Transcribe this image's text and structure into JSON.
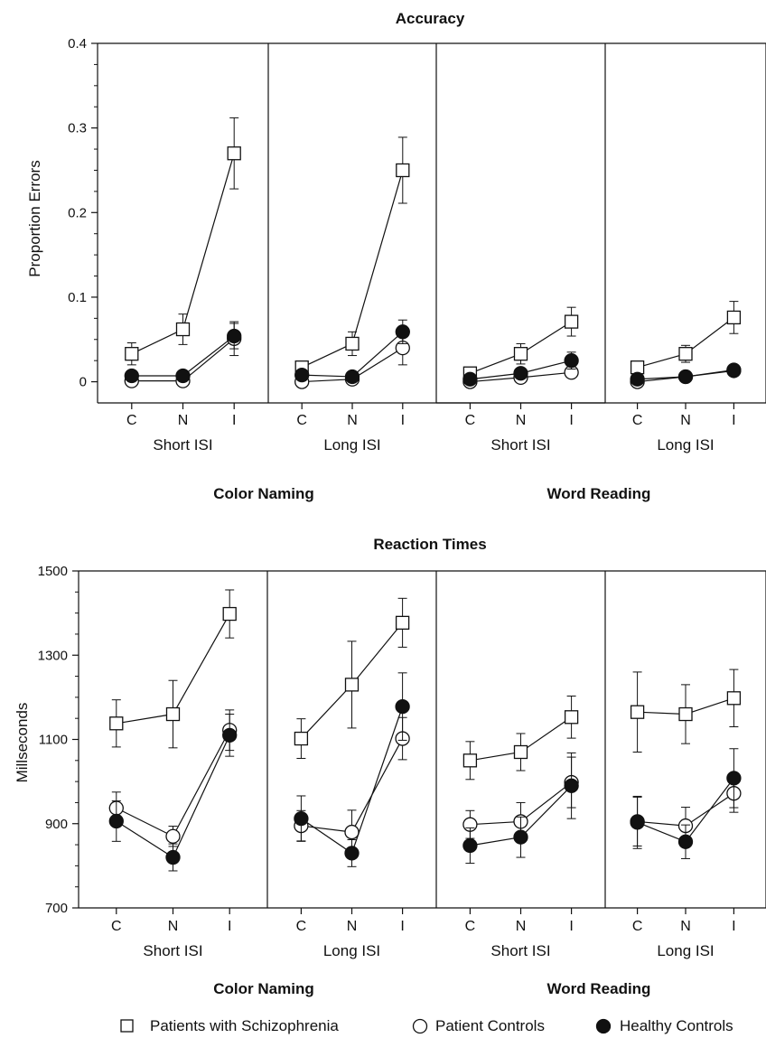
{
  "legend": [
    {
      "label": "Patients with Schizophrenia",
      "marker": "open-square"
    },
    {
      "label": "Patient Controls",
      "marker": "open-circle"
    },
    {
      "label": "Healthy Controls",
      "marker": "filled-circle"
    }
  ],
  "colors": {
    "ink": "#111111",
    "background": "#ffffff"
  },
  "chart_data": [
    {
      "type": "line",
      "title": "Accuracy",
      "ylabel": "Proportion Errors",
      "ylim": [
        -0.025,
        0.4
      ],
      "yticks": [
        0,
        0.1,
        0.2,
        0.3,
        0.4
      ],
      "ytick_labels": [
        "0",
        "0.1",
        "0.2",
        "0.3",
        "0.4"
      ],
      "categories": [
        "C",
        "N",
        "I"
      ],
      "groups": [
        "Color Naming",
        "Word Reading"
      ],
      "subpanels": [
        {
          "group": "Color Naming",
          "isi": "Short ISI",
          "series": [
            {
              "name": "Patients with Schizophrenia",
              "values": [
                0.033,
                0.062,
                0.27
              ],
              "err": [
                0.013,
                0.018,
                0.042
              ]
            },
            {
              "name": "Patient Controls",
              "values": [
                0.001,
                0.001,
                0.051
              ],
              "err": [
                0,
                0,
                0.02
              ]
            },
            {
              "name": "Healthy Controls",
              "values": [
                0.007,
                0.007,
                0.054
              ],
              "err": [
                0.004,
                0.006,
                0.015
              ]
            }
          ]
        },
        {
          "group": "Color Naming",
          "isi": "Long ISI",
          "series": [
            {
              "name": "Patients with Schizophrenia",
              "values": [
                0.017,
                0.045,
                0.25
              ],
              "err": [
                0.006,
                0.014,
                0.039
              ]
            },
            {
              "name": "Patient Controls",
              "values": [
                0.0,
                0.003,
                0.04
              ],
              "err": [
                0,
                0,
                0.02
              ]
            },
            {
              "name": "Healthy Controls",
              "values": [
                0.008,
                0.006,
                0.059
              ],
              "err": [
                0.003,
                0.003,
                0.014
              ]
            }
          ]
        },
        {
          "group": "Word Reading",
          "isi": "Short ISI",
          "series": [
            {
              "name": "Patients with Schizophrenia",
              "values": [
                0.01,
                0.033,
                0.071
              ],
              "err": [
                0.005,
                0.012,
                0.017
              ]
            },
            {
              "name": "Patient Controls",
              "values": [
                0.0,
                0.005,
                0.011
              ],
              "err": [
                0,
                0,
                0
              ]
            },
            {
              "name": "Healthy Controls",
              "values": [
                0.003,
                0.01,
                0.025
              ],
              "err": [
                0.002,
                0.005,
                0.01
              ]
            }
          ]
        },
        {
          "group": "Word Reading",
          "isi": "Long ISI",
          "series": [
            {
              "name": "Patients with Schizophrenia",
              "values": [
                0.017,
                0.033,
                0.076
              ],
              "err": [
                0.004,
                0.01,
                0.019
              ]
            },
            {
              "name": "Patient Controls",
              "values": [
                0.0,
                0.006,
                0.013
              ],
              "err": [
                0,
                0,
                0
              ]
            },
            {
              "name": "Healthy Controls",
              "values": [
                0.003,
                0.006,
                0.014
              ],
              "err": [
                0.002,
                0.002,
                0.004
              ]
            }
          ]
        }
      ]
    },
    {
      "type": "line",
      "title": "Reaction Times",
      "ylabel": "Millseconds",
      "ylim": [
        700,
        1500
      ],
      "yticks": [
        700,
        900,
        1100,
        1300,
        1500
      ],
      "ytick_labels": [
        "700",
        "900",
        "1100",
        "1300",
        "1500"
      ],
      "categories": [
        "C",
        "N",
        "I"
      ],
      "groups": [
        "Color Naming",
        "Word Reading"
      ],
      "subpanels": [
        {
          "group": "Color Naming",
          "isi": "Short ISI",
          "series": [
            {
              "name": "Patients with Schizophrenia",
              "values": [
                1138,
                1160,
                1398
              ],
              "err": [
                56,
                80,
                57
              ]
            },
            {
              "name": "Patient Controls",
              "values": [
                937,
                870,
                1122
              ],
              "err": [
                38,
                24,
                48
              ]
            },
            {
              "name": "Healthy Controls",
              "values": [
                906,
                820,
                1110
              ],
              "err": [
                48,
                32,
                50
              ]
            }
          ]
        },
        {
          "group": "Color Naming",
          "isi": "Long ISI",
          "series": [
            {
              "name": "Patients with Schizophrenia",
              "values": [
                1102,
                1230,
                1377
              ],
              "err": [
                47,
                103,
                58
              ]
            },
            {
              "name": "Patient Controls",
              "values": [
                895,
                880,
                1102
              ],
              "err": [
                36,
                52,
                50
              ]
            },
            {
              "name": "Healthy Controls",
              "values": [
                912,
                830,
                1178
              ],
              "err": [
                54,
                32,
                80
              ]
            }
          ]
        },
        {
          "group": "Word Reading",
          "isi": "Short ISI",
          "series": [
            {
              "name": "Patients with Schizophrenia",
              "values": [
                1050,
                1070,
                1153
              ],
              "err": [
                45,
                44,
                50
              ]
            },
            {
              "name": "Patient Controls",
              "values": [
                898,
                905,
                998
              ],
              "err": [
                33,
                45,
                60
              ]
            },
            {
              "name": "Healthy Controls",
              "values": [
                848,
                868,
                990
              ],
              "err": [
                42,
                48,
                78
              ]
            }
          ]
        },
        {
          "group": "Word Reading",
          "isi": "Long ISI",
          "series": [
            {
              "name": "Patients with Schizophrenia",
              "values": [
                1165,
                1160,
                1198
              ],
              "err": [
                95,
                70,
                68
              ]
            },
            {
              "name": "Patient Controls",
              "values": [
                905,
                895,
                972
              ],
              "err": [
                58,
                44,
                45
              ]
            },
            {
              "name": "Healthy Controls",
              "values": [
                903,
                857,
                1008
              ],
              "err": [
                62,
                40,
                70
              ]
            }
          ]
        }
      ]
    }
  ]
}
